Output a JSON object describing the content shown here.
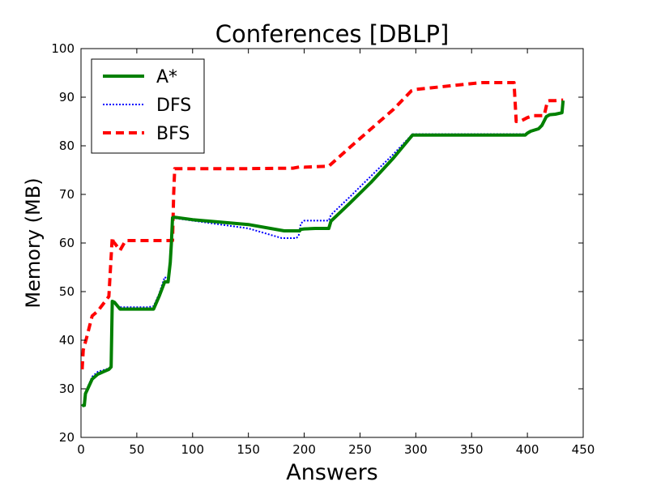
{
  "chart_data": {
    "type": "line",
    "title": "Conferences [DBLP]",
    "xlabel": "Answers",
    "ylabel": "Memory (MB)",
    "xlim": [
      0,
      450
    ],
    "ylim": [
      20,
      100
    ],
    "xticks": [
      0,
      50,
      100,
      150,
      200,
      250,
      300,
      350,
      400,
      450
    ],
    "yticks": [
      20,
      30,
      40,
      50,
      60,
      70,
      80,
      90,
      100
    ],
    "grid": false,
    "legend_position": "top-left",
    "series": [
      {
        "name": "A*",
        "color": "#008000",
        "style": "solid",
        "x": [
          1,
          2,
          3,
          4,
          5,
          10,
          15,
          25,
          27,
          28,
          30,
          35,
          40,
          50,
          60,
          65,
          70,
          75,
          78,
          80,
          81,
          82,
          84,
          100,
          150,
          182,
          193,
          196,
          197,
          200,
          210,
          222,
          224,
          240,
          260,
          280,
          297,
          300,
          350,
          398,
          400,
          403,
          410,
          413,
          417,
          420,
          425,
          431,
          432
        ],
        "y": [
          26.4,
          26.6,
          26.6,
          29.0,
          29.5,
          32.0,
          33.0,
          34.0,
          34.5,
          48.0,
          47.8,
          46.4,
          46.4,
          46.4,
          46.4,
          46.4,
          49.0,
          52.0,
          52.0,
          56.0,
          60.0,
          65.2,
          65.3,
          64.8,
          63.8,
          62.5,
          62.5,
          62.5,
          62.8,
          62.9,
          63.0,
          63.0,
          64.5,
          68.0,
          72.5,
          77.5,
          82.2,
          82.2,
          82.2,
          82.2,
          82.6,
          83.0,
          83.5,
          84.2,
          86.0,
          86.4,
          86.5,
          86.8,
          89.3
        ]
      },
      {
        "name": "DFS",
        "color": "#0000ff",
        "style": "dotted",
        "x": [
          1,
          2,
          3,
          4,
          5,
          10,
          15,
          25,
          27,
          28,
          30,
          35,
          40,
          50,
          60,
          65,
          70,
          75,
          78,
          80,
          81,
          82,
          84,
          100,
          150,
          180,
          193,
          195,
          197,
          200,
          210,
          222,
          224,
          240,
          260,
          280,
          297,
          300,
          350,
          398,
          400,
          403,
          410,
          413,
          417,
          420,
          425,
          431,
          432
        ],
        "y": [
          26.4,
          26.6,
          26.6,
          29.0,
          29.8,
          32.5,
          33.5,
          34.2,
          34.5,
          47.5,
          47.5,
          46.8,
          46.8,
          46.8,
          46.8,
          47.0,
          49.5,
          53.0,
          52.5,
          56.0,
          60.0,
          65.0,
          65.1,
          64.6,
          63.0,
          61.0,
          61.0,
          61.5,
          64.0,
          64.6,
          64.6,
          64.6,
          65.8,
          69.3,
          73.8,
          78.3,
          82.4,
          82.4,
          82.4,
          82.4,
          82.6,
          83.0,
          83.5,
          84.0,
          86.0,
          86.3,
          86.5,
          86.8,
          89.5
        ]
      },
      {
        "name": "BFS",
        "color": "#ff0000",
        "style": "dashed",
        "x": [
          1,
          2,
          5,
          10,
          15,
          20,
          25,
          28,
          29,
          30,
          35,
          40,
          50,
          60,
          70,
          80,
          82,
          83,
          84,
          100,
          150,
          190,
          197,
          200,
          222,
          240,
          260,
          280,
          296,
          300,
          350,
          360,
          388,
          390,
          395,
          400,
          405,
          412,
          415,
          418,
          420,
          425,
          430,
          432
        ],
        "y": [
          34.0,
          38.0,
          40.5,
          45.0,
          46.0,
          47.5,
          49.0,
          61.2,
          60.2,
          60.0,
          58.5,
          60.5,
          60.5,
          60.5,
          60.5,
          60.5,
          60.5,
          70.0,
          75.3,
          75.3,
          75.3,
          75.4,
          75.7,
          75.6,
          75.8,
          79.5,
          83.5,
          87.5,
          91.3,
          91.6,
          92.8,
          93.0,
          93.0,
          85.0,
          85.2,
          85.8,
          86.2,
          86.2,
          86.2,
          89.2,
          89.3,
          89.3,
          89.4,
          89.4
        ]
      }
    ]
  }
}
